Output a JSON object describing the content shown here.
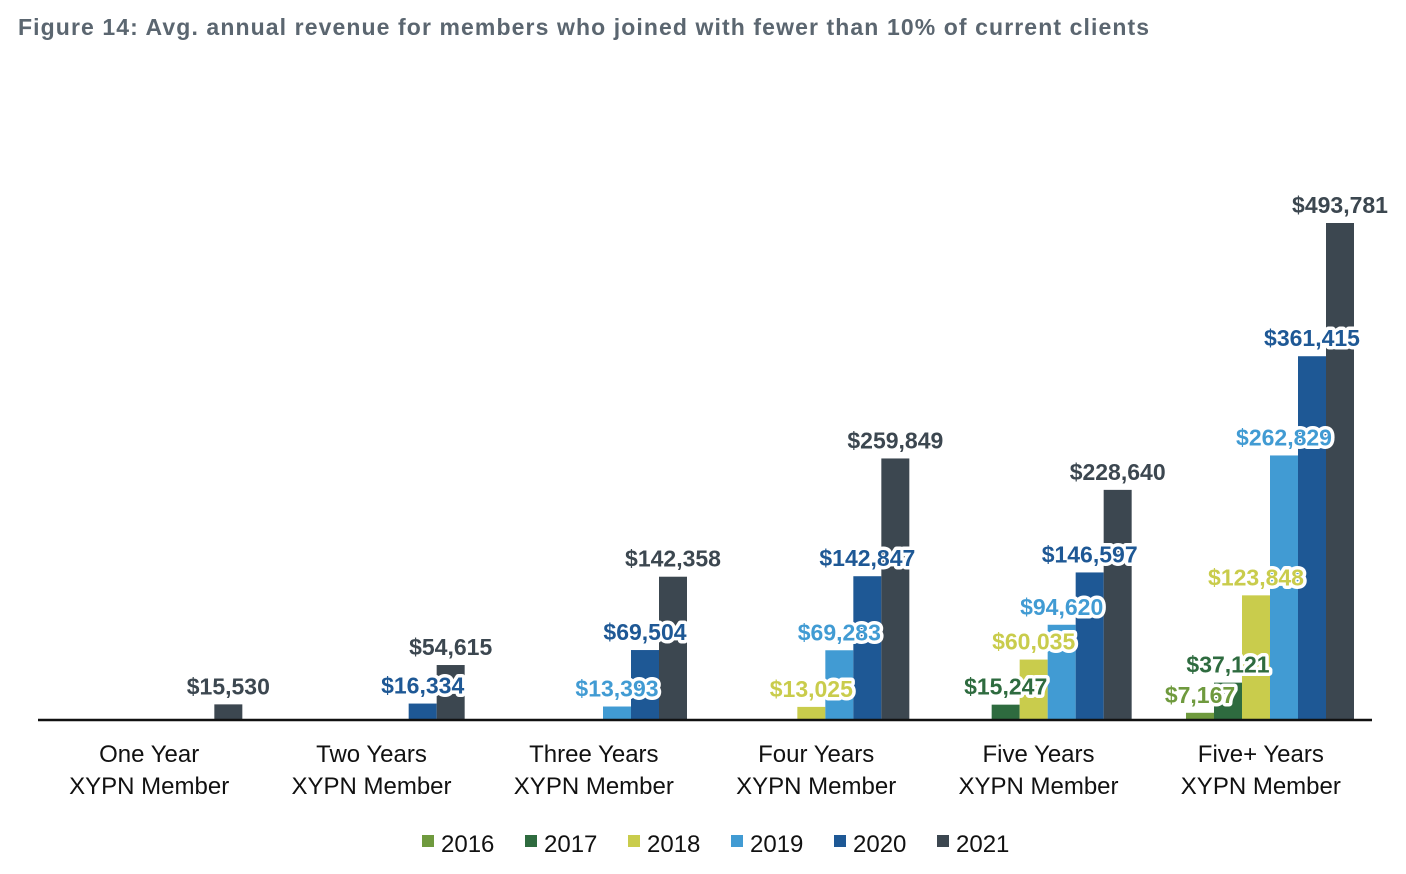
{
  "title": "Figure 14: Avg. annual revenue for members who joined with fewer than 10% of current clients",
  "chart_data": {
    "type": "bar",
    "categories": [
      [
        "One Year",
        "XYPN Member"
      ],
      [
        "Two Years",
        "XYPN Member"
      ],
      [
        "Three Years",
        "XYPN Member"
      ],
      [
        "Four Years",
        "XYPN Member"
      ],
      [
        "Five Years",
        "XYPN Member"
      ],
      [
        "Five+ Years",
        "XYPN Member"
      ]
    ],
    "series": [
      {
        "name": "2016",
        "color": "#6f9a3e",
        "values": [
          null,
          null,
          null,
          null,
          null,
          7167
        ]
      },
      {
        "name": "2017",
        "color": "#2e6b3f",
        "values": [
          null,
          null,
          null,
          null,
          15247,
          37121
        ]
      },
      {
        "name": "2018",
        "color": "#c9cc4c",
        "values": [
          null,
          null,
          null,
          13025,
          60035,
          123848
        ]
      },
      {
        "name": "2019",
        "color": "#419bd3",
        "values": [
          null,
          null,
          13393,
          69283,
          94620,
          262829
        ]
      },
      {
        "name": "2020",
        "color": "#1e5895",
        "values": [
          null,
          16334,
          69504,
          142847,
          146597,
          361415
        ]
      },
      {
        "name": "2021",
        "color": "#3c4750",
        "values": [
          15530,
          54615,
          142358,
          259849,
          228640,
          493781
        ]
      }
    ],
    "data_labels": [
      [
        null,
        null,
        null,
        null,
        null,
        "$7,167"
      ],
      [
        null,
        null,
        null,
        null,
        "$15,247",
        "$37,121"
      ],
      [
        null,
        null,
        null,
        "$13,025",
        "$60,035",
        "$123,848"
      ],
      [
        null,
        null,
        "$13,393",
        "$69,283",
        "$94,620",
        "$262,829"
      ],
      [
        null,
        "$16,334",
        "$69,504",
        "$142,847",
        "$146,597",
        "$361,415"
      ],
      [
        "$15,530",
        "$54,615",
        "$142,358",
        "$259,849",
        "$228,640",
        "$493,781"
      ]
    ],
    "xlabel": "",
    "ylabel": "",
    "ylim": [
      0,
      500000
    ],
    "grid": false,
    "legend": "bottom"
  }
}
